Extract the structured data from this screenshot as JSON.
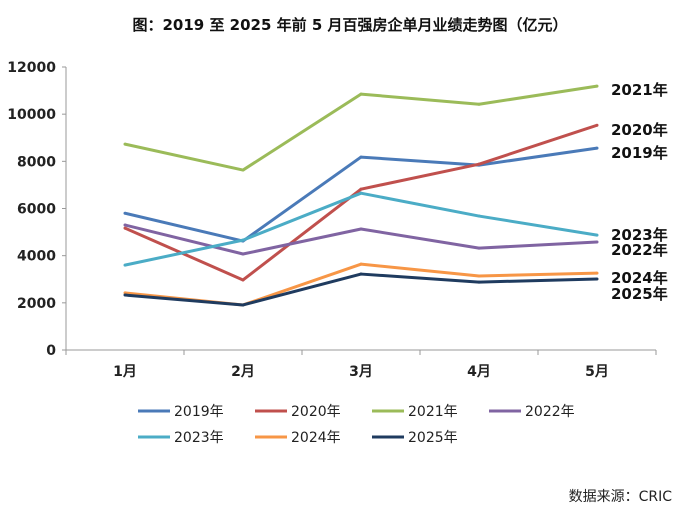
{
  "chart_data": {
    "type": "line",
    "title": "图：2019 至 2025 年前 5 月百强房企单月业绩走势图（亿元）",
    "source": "数据来源：CRIC",
    "categories": [
      "1月",
      "2月",
      "3月",
      "4月",
      "5月"
    ],
    "ylim": [
      0,
      12000
    ],
    "yticks": [
      0,
      2000,
      4000,
      6000,
      8000,
      10000,
      12000
    ],
    "grid": false,
    "legend": "bottom",
    "series": [
      {
        "name": "2019年",
        "color": "#4a7ab8",
        "values": [
          5800,
          4620,
          8180,
          7840,
          8560
        ]
      },
      {
        "name": "2020年",
        "color": "#c0504d",
        "values": [
          5170,
          2970,
          6820,
          7880,
          9530
        ]
      },
      {
        "name": "2021年",
        "color": "#9bbb59",
        "values": [
          8730,
          7630,
          10850,
          10420,
          11190
        ]
      },
      {
        "name": "2022年",
        "color": "#8064a2",
        "values": [
          5300,
          4070,
          5130,
          4320,
          4580
        ]
      },
      {
        "name": "2023年",
        "color": "#4bacc6",
        "values": [
          3600,
          4660,
          6650,
          5680,
          4870
        ]
      },
      {
        "name": "2024年",
        "color": "#f79646",
        "values": [
          2420,
          1910,
          3640,
          3140,
          3260
        ]
      },
      {
        "name": "2025年",
        "color": "#1f3b5f",
        "values": [
          2330,
          1910,
          3220,
          2880,
          3010
        ]
      }
    ]
  }
}
